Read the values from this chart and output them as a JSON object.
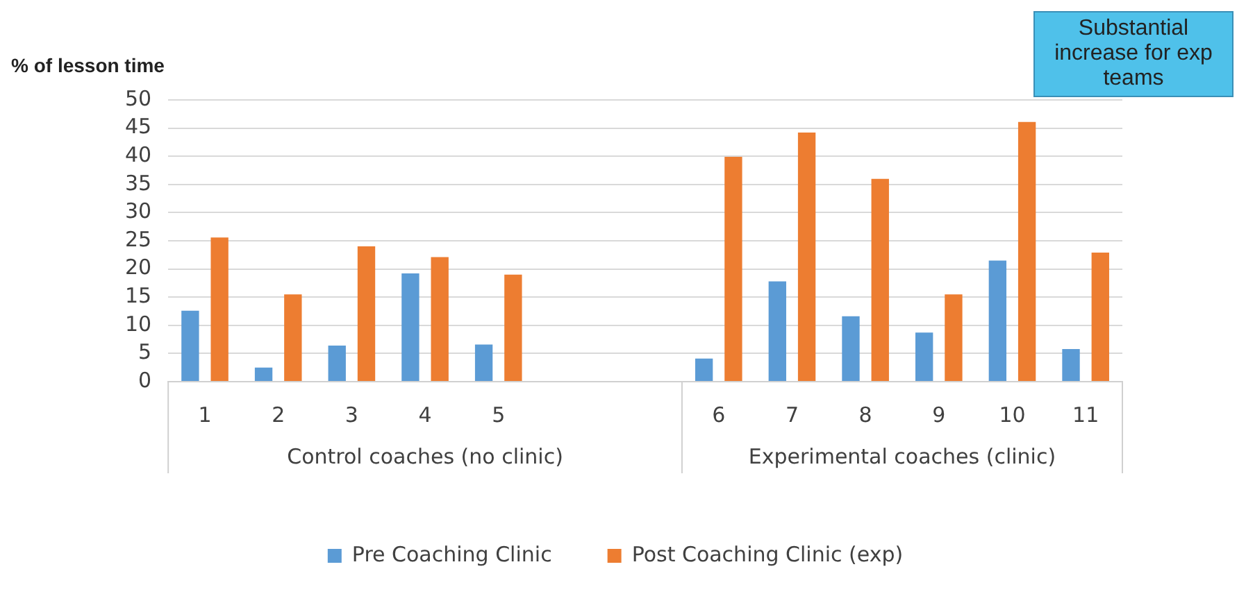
{
  "chart_data": {
    "type": "bar",
    "ylabel": "% of lesson time",
    "categories": [
      "1",
      "2",
      "3",
      "4",
      "5",
      null,
      null,
      "6",
      "7",
      "8",
      "9",
      "10",
      "11"
    ],
    "series": [
      {
        "name": "Pre Coaching Clinic",
        "color": "#5b9bd5",
        "values": [
          12.6,
          2.5,
          6.4,
          19.2,
          6.6,
          null,
          null,
          4.1,
          17.8,
          11.6,
          8.7,
          21.5,
          5.8
        ]
      },
      {
        "name": "Post Coaching Clinic (exp)",
        "color": "#ed7d31",
        "values": [
          25.6,
          15.5,
          24,
          22.1,
          19,
          null,
          null,
          39.9,
          44.2,
          36,
          15.5,
          46.1,
          22.9
        ]
      }
    ],
    "ylim": [
      0,
      50
    ],
    "yticks": [
      0,
      5,
      10,
      15,
      20,
      25,
      30,
      35,
      40,
      45,
      50
    ],
    "grid": "y",
    "legend": "bottom",
    "annotations": [
      "Control coaches (no clinic)",
      "Experimental coaches (clinic)",
      "Substantial increase for exp teams"
    ]
  }
}
